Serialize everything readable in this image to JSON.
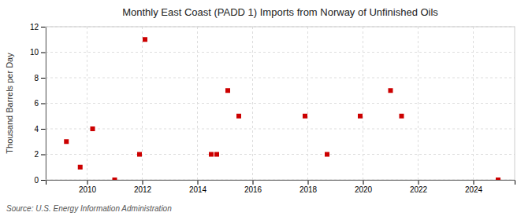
{
  "chart_data": {
    "type": "scatter",
    "title": "Monthly East Coast (PADD 1) Imports from Norway of Unfinished Oils",
    "ylabel": "Thousand Barrels per Day",
    "source": "Source: U.S. Energy Information Administration",
    "x": [
      2009.25,
      2009.75,
      2010.2,
      2011.0,
      2011.9,
      2012.1,
      2014.5,
      2014.7,
      2015.1,
      2015.5,
      2017.9,
      2018.7,
      2019.9,
      2021.0,
      2021.4,
      2024.9
    ],
    "values": [
      3,
      1,
      4,
      0,
      2,
      11,
      2,
      2,
      7,
      5,
      5,
      2,
      5,
      7,
      5,
      0
    ],
    "color": "#cc0000",
    "marker": "square",
    "xlim": [
      2008.5,
      2025.5
    ],
    "ylim": [
      0,
      12
    ],
    "xticks": [
      2010,
      2012,
      2014,
      2016,
      2018,
      2020,
      2022,
      2024
    ],
    "yticks": [
      0,
      2,
      4,
      6,
      8,
      10,
      12
    ],
    "grid": true
  }
}
